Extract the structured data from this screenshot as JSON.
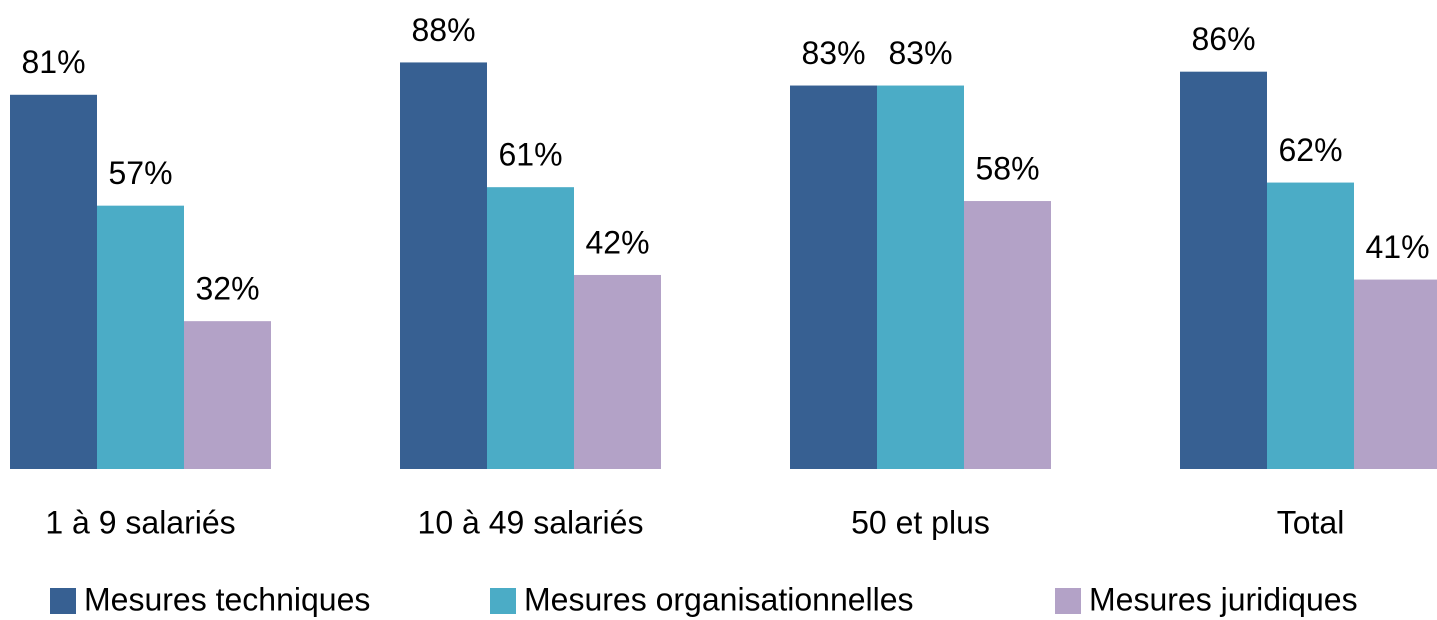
{
  "chart_data": {
    "type": "bar",
    "categories": [
      "1 à 9 salariés",
      "10 à 49 salariés",
      "50 et plus",
      "Total"
    ],
    "series": [
      {
        "name": "Mesures techniques",
        "color": "#376092",
        "values": [
          81,
          88,
          83,
          86
        ],
        "value_labels": [
          "81%",
          "88%",
          "83%",
          "86%"
        ]
      },
      {
        "name": "Mesures organisationnelles",
        "color": "#4bacc6",
        "values": [
          57,
          61,
          83,
          62
        ],
        "value_labels": [
          "57%",
          "61%",
          "83%",
          "62%"
        ]
      },
      {
        "name": "Mesures juridiques",
        "color": "#b3a2c7",
        "values": [
          32,
          42,
          58,
          41
        ],
        "value_labels": [
          "32%",
          "42%",
          "58%",
          "41%"
        ]
      }
    ],
    "ylim": [
      0,
      100
    ],
    "legend": "bottom"
  }
}
